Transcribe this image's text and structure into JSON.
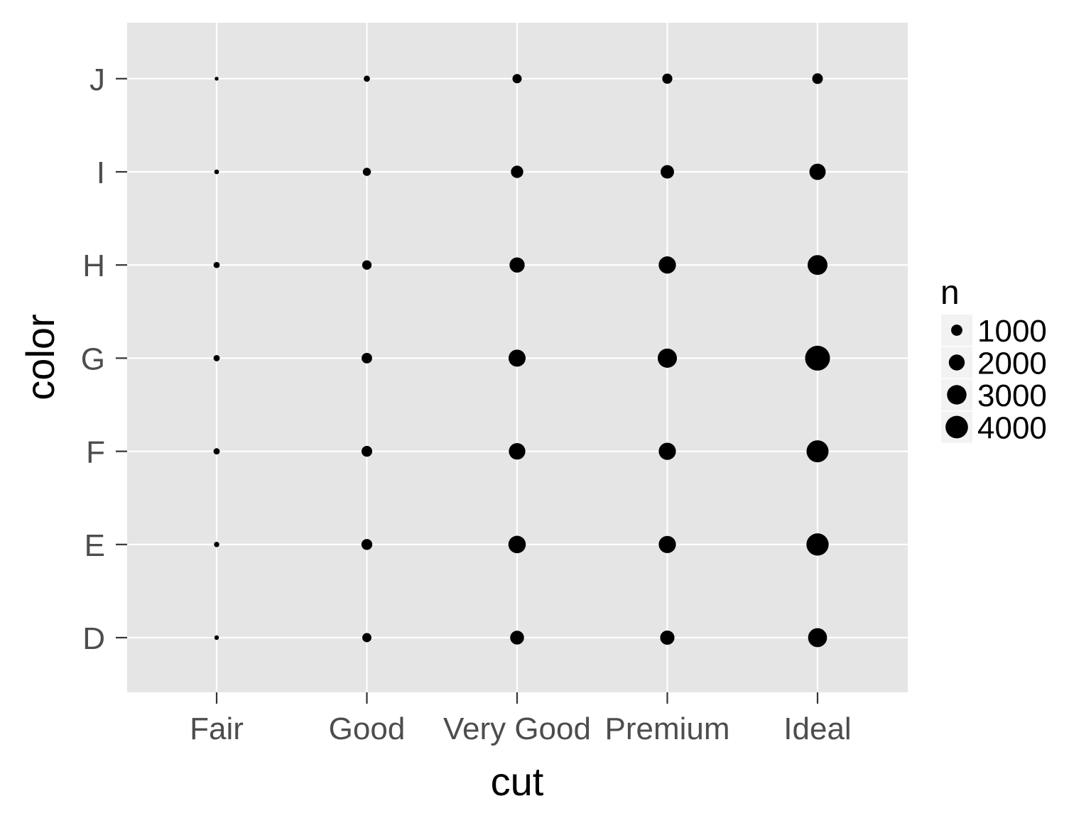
{
  "chart_data": {
    "type": "scatter",
    "xlabel": "cut",
    "ylabel": "color",
    "x_categories": [
      "Fair",
      "Good",
      "Very Good",
      "Premium",
      "Ideal"
    ],
    "y_categories": [
      "D",
      "E",
      "F",
      "G",
      "H",
      "I",
      "J"
    ],
    "size_legend": {
      "title": "n",
      "breaks": [
        1000,
        2000,
        3000,
        4000
      ],
      "labels": [
        "1000",
        "2000",
        "3000",
        "4000"
      ]
    },
    "points": [
      {
        "cut": "Fair",
        "color": "D",
        "n": 163
      },
      {
        "cut": "Fair",
        "color": "E",
        "n": 224
      },
      {
        "cut": "Fair",
        "color": "F",
        "n": 312
      },
      {
        "cut": "Fair",
        "color": "G",
        "n": 314
      },
      {
        "cut": "Fair",
        "color": "H",
        "n": 303
      },
      {
        "cut": "Fair",
        "color": "I",
        "n": 175
      },
      {
        "cut": "Fair",
        "color": "J",
        "n": 119
      },
      {
        "cut": "Good",
        "color": "D",
        "n": 662
      },
      {
        "cut": "Good",
        "color": "E",
        "n": 933
      },
      {
        "cut": "Good",
        "color": "F",
        "n": 909
      },
      {
        "cut": "Good",
        "color": "G",
        "n": 871
      },
      {
        "cut": "Good",
        "color": "H",
        "n": 702
      },
      {
        "cut": "Good",
        "color": "I",
        "n": 522
      },
      {
        "cut": "Good",
        "color": "J",
        "n": 307
      },
      {
        "cut": "Very Good",
        "color": "D",
        "n": 1513
      },
      {
        "cut": "Very Good",
        "color": "E",
        "n": 2400
      },
      {
        "cut": "Very Good",
        "color": "F",
        "n": 2164
      },
      {
        "cut": "Very Good",
        "color": "G",
        "n": 2299
      },
      {
        "cut": "Very Good",
        "color": "H",
        "n": 1824
      },
      {
        "cut": "Very Good",
        "color": "I",
        "n": 1204
      },
      {
        "cut": "Very Good",
        "color": "J",
        "n": 678
      },
      {
        "cut": "Premium",
        "color": "D",
        "n": 1603
      },
      {
        "cut": "Premium",
        "color": "E",
        "n": 2337
      },
      {
        "cut": "Premium",
        "color": "F",
        "n": 2331
      },
      {
        "cut": "Premium",
        "color": "G",
        "n": 2924
      },
      {
        "cut": "Premium",
        "color": "H",
        "n": 2360
      },
      {
        "cut": "Premium",
        "color": "I",
        "n": 1428
      },
      {
        "cut": "Premium",
        "color": "J",
        "n": 808
      },
      {
        "cut": "Ideal",
        "color": "D",
        "n": 2834
      },
      {
        "cut": "Ideal",
        "color": "E",
        "n": 3903
      },
      {
        "cut": "Ideal",
        "color": "F",
        "n": 3826
      },
      {
        "cut": "Ideal",
        "color": "G",
        "n": 4884
      },
      {
        "cut": "Ideal",
        "color": "H",
        "n": 3115
      },
      {
        "cut": "Ideal",
        "color": "I",
        "n": 2093
      },
      {
        "cut": "Ideal",
        "color": "J",
        "n": 896
      }
    ],
    "panel_background": "#e5e5e5",
    "grid_color": "#ffffff",
    "point_color": "#000000",
    "grid": true,
    "legend_position": "right"
  }
}
